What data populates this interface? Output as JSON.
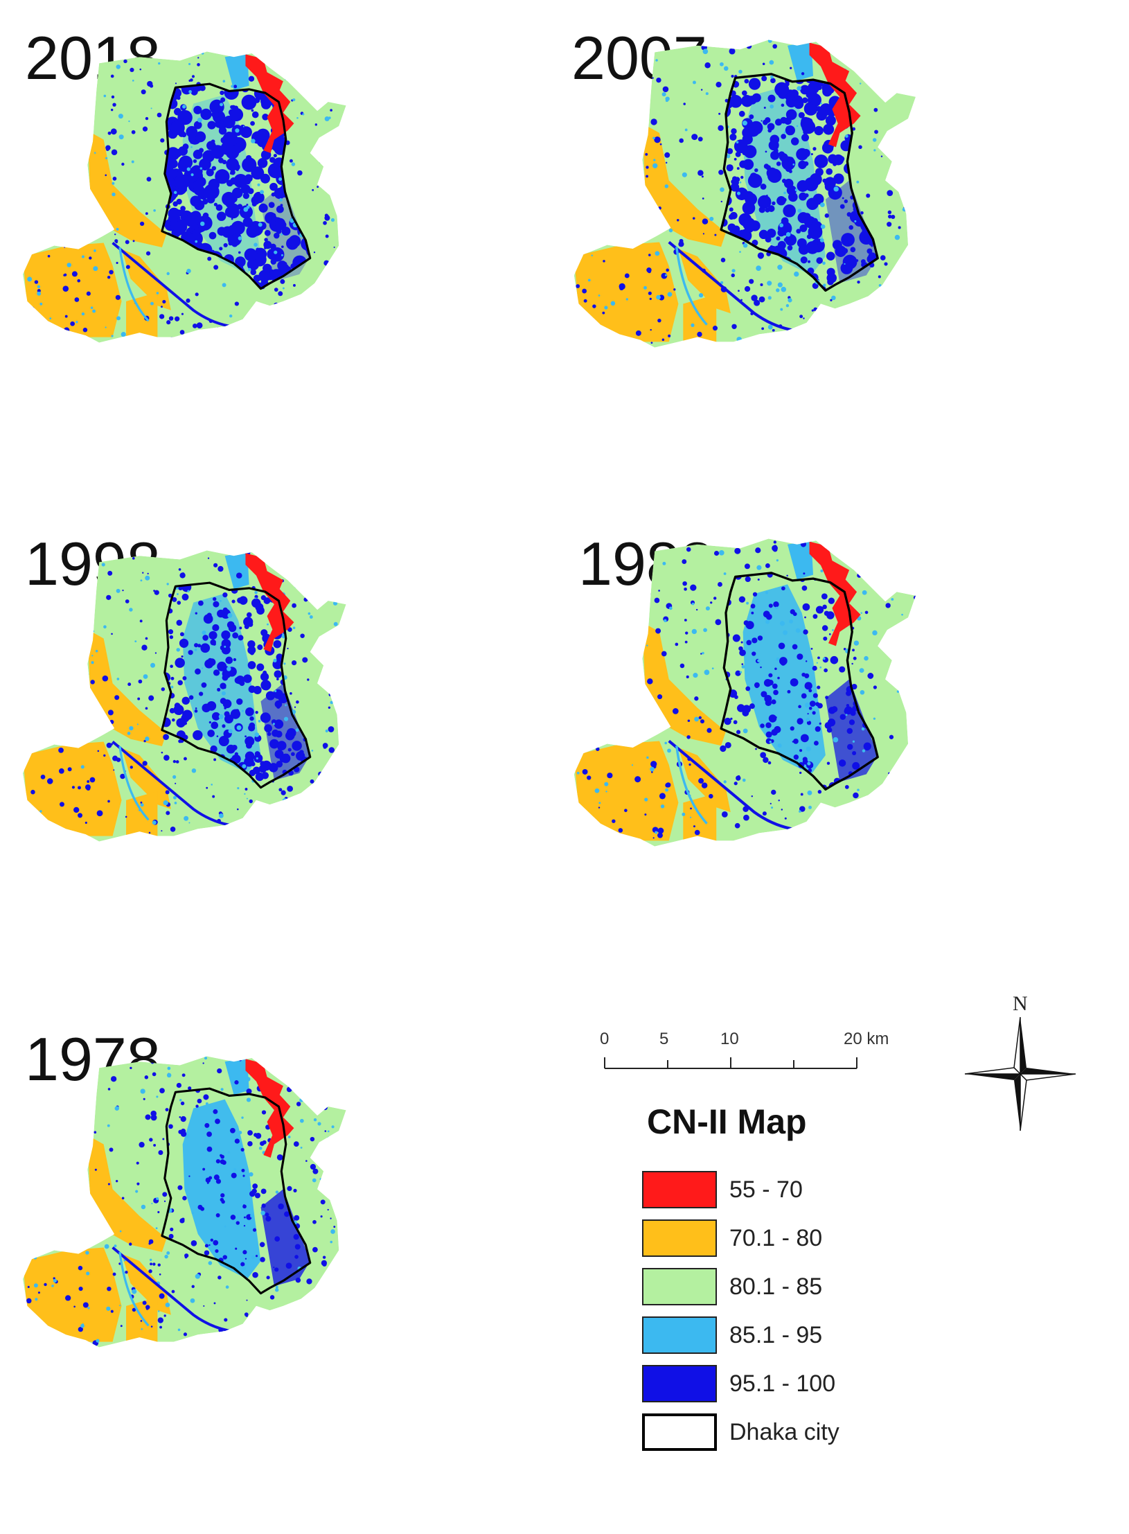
{
  "panels": [
    {
      "id": "2018",
      "year": "2018",
      "built": 0.95,
      "mid": 0.15
    },
    {
      "id": "2007",
      "year": "2007",
      "built": 0.8,
      "mid": 0.35
    },
    {
      "id": "1998",
      "year": "1998",
      "built": 0.55,
      "mid": 0.6
    },
    {
      "id": "1988",
      "year": "1988",
      "built": 0.35,
      "mid": 0.85
    },
    {
      "id": "1978",
      "year": "1978",
      "built": 0.2,
      "mid": 0.95
    }
  ],
  "legend": {
    "title": "CN-II Map",
    "items": [
      {
        "label": "55 - 70",
        "color": "#ff1a1a"
      },
      {
        "label": "70.1 - 80",
        "color": "#ffbf1a"
      },
      {
        "label": "80.1 - 85",
        "color": "#b4f0a0"
      },
      {
        "label": "85.1 - 95",
        "color": "#3cb9f0"
      },
      {
        "label": "95.1 - 100",
        "color": "#1010e6"
      },
      {
        "label": "Dhaka city",
        "color": "#ffffff"
      }
    ]
  },
  "scale_bar": {
    "ticks": [
      "0",
      "5",
      "10",
      "20 km"
    ]
  },
  "north": {
    "label": "N"
  }
}
